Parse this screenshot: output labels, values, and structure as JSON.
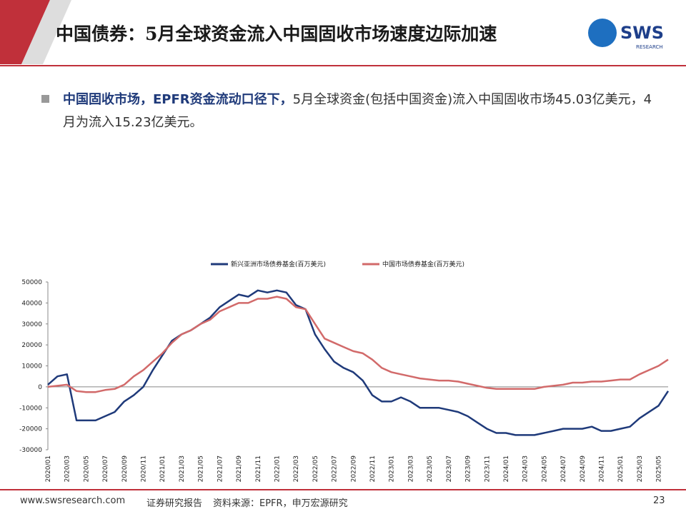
{
  "header": {
    "title": "中国债券：5月全球资金流入中国固收市场速度边际加速",
    "logo": "SWS",
    "logo_sub": "RESEARCH"
  },
  "bullet": {
    "bold": "中国固收市场，EPFR资金流动口径下，",
    "text": "5月全球资金(包括中国资金)流入中国固收市场45.03亿美元，4月为流入15.23亿美元。"
  },
  "chart_data": {
    "type": "line",
    "categories": [
      "2020/01",
      null,
      "2020/03",
      null,
      "2020/05",
      null,
      "2020/07",
      null,
      "2020/09",
      null,
      "2020/11",
      null,
      "2021/01",
      null,
      "2021/03",
      null,
      "2021/05",
      null,
      "2021/07",
      null,
      "2021/09",
      null,
      "2021/11",
      null,
      "2022/01",
      null,
      "2022/03",
      null,
      "2022/05",
      null,
      "2022/07",
      null,
      "2022/09",
      null,
      "2022/11",
      null,
      "2023/01",
      null,
      "2023/03",
      null,
      "2023/05",
      null,
      "2023/07",
      null,
      "2023/09",
      null,
      "2023/11",
      null,
      "2024/01",
      null,
      "2024/03",
      null,
      "2024/05",
      null,
      "2024/07",
      null,
      "2024/09",
      null,
      "2024/11",
      null,
      "2025/01",
      null,
      "2025/03",
      null,
      "2025/05",
      null
    ],
    "series": [
      {
        "name": "新兴亚洲市场债券基金(百万美元)",
        "color": "#1f3a7a",
        "values": [
          1000,
          5000,
          6000,
          -16000,
          -16000,
          -16000,
          -14000,
          -12000,
          -7000,
          -4000,
          0,
          8000,
          15000,
          22000,
          25000,
          27000,
          30000,
          33000,
          38000,
          41000,
          44000,
          43000,
          46000,
          45000,
          46000,
          45000,
          39000,
          37000,
          25000,
          18000,
          12000,
          9000,
          7000,
          3000,
          -4000,
          -7000,
          -7000,
          -5000,
          -7000,
          -10000,
          -10000,
          -10000,
          -11000,
          -12000,
          -14000,
          -17000,
          -20000,
          -22000,
          -22000,
          -23000,
          -23000,
          -23000,
          -22000,
          -21000,
          -20000,
          -20000,
          -20000,
          -19000,
          -21000,
          -21000,
          -20000,
          -19000,
          -15000,
          -12000,
          -9000,
          -2000
        ]
      },
      {
        "name": "中国市场债券基金(百万美元)",
        "color": "#d26a6a",
        "values": [
          0,
          500,
          1000,
          -2000,
          -2500,
          -2500,
          -1500,
          -1000,
          1000,
          5000,
          8000,
          12000,
          16000,
          21000,
          25000,
          27000,
          30000,
          32000,
          36000,
          38000,
          40000,
          40000,
          42000,
          42000,
          43000,
          42000,
          38000,
          37000,
          30000,
          23000,
          21000,
          19000,
          17000,
          16000,
          13000,
          9000,
          7000,
          6000,
          5000,
          4000,
          3500,
          3000,
          3000,
          2500,
          1500,
          500,
          -500,
          -1000,
          -1000,
          -1000,
          -1000,
          -1000,
          0,
          500,
          1000,
          2000,
          2000,
          2500,
          2500,
          3000,
          3500,
          3500,
          6000,
          8000,
          10000,
          13000
        ]
      }
    ],
    "ylim": [
      -30000,
      50000
    ],
    "yticks": [
      -30000,
      -20000,
      -10000,
      0,
      10000,
      20000,
      30000,
      40000,
      50000
    ]
  },
  "footer": {
    "site": "www.swsresearch.com",
    "report": "证券研究报告",
    "source": "资料来源：EPFR，申万宏源研究",
    "page": "23"
  }
}
